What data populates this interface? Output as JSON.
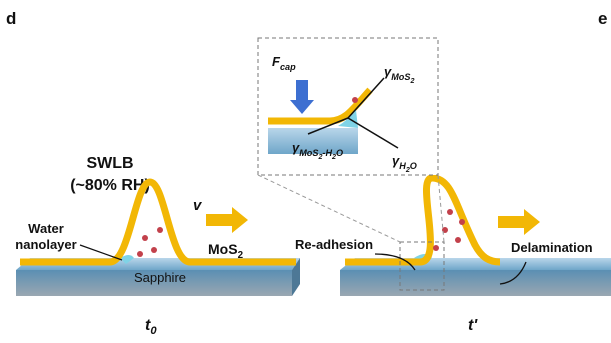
{
  "panel_d": {
    "label": "d",
    "condition": [
      "SWLB",
      "(~80% RH)"
    ],
    "water_label": [
      "Water",
      "nanolayer"
    ],
    "velocity": "v",
    "material": [
      {
        "text": "MoS",
        "level": 0
      },
      {
        "text": "2",
        "level": 1
      }
    ],
    "substrate": "Sapphire",
    "time": [
      {
        "text": "t",
        "level": 0
      },
      {
        "text": "0",
        "level": 1
      }
    ]
  },
  "panel_e": {
    "label": "e",
    "readhesion": "Re-adhesion",
    "delamination": "Delamination",
    "time": "t'",
    "inset": {
      "force": [
        {
          "text": "F",
          "level": 0
        },
        {
          "text": "cap",
          "level": 1
        }
      ],
      "gamma_mos2": [
        {
          "text": "γ",
          "level": 0
        },
        {
          "text": "MoS",
          "level": 1
        },
        {
          "text": "2",
          "level": 2
        }
      ],
      "gamma_mos2_h2o": [
        {
          "text": "γ",
          "level": 0
        },
        {
          "text": "MoS",
          "level": 1
        },
        {
          "text": "2",
          "level": 2
        },
        {
          "text": "-H",
          "level": 1
        },
        {
          "text": "2",
          "level": 2
        },
        {
          "text": "O",
          "level": 1
        }
      ],
      "gamma_h2o": [
        {
          "text": "γ",
          "level": 0
        },
        {
          "text": "H",
          "level": 1
        },
        {
          "text": "2",
          "level": 2
        },
        {
          "text": "O",
          "level": 1
        }
      ]
    }
  }
}
